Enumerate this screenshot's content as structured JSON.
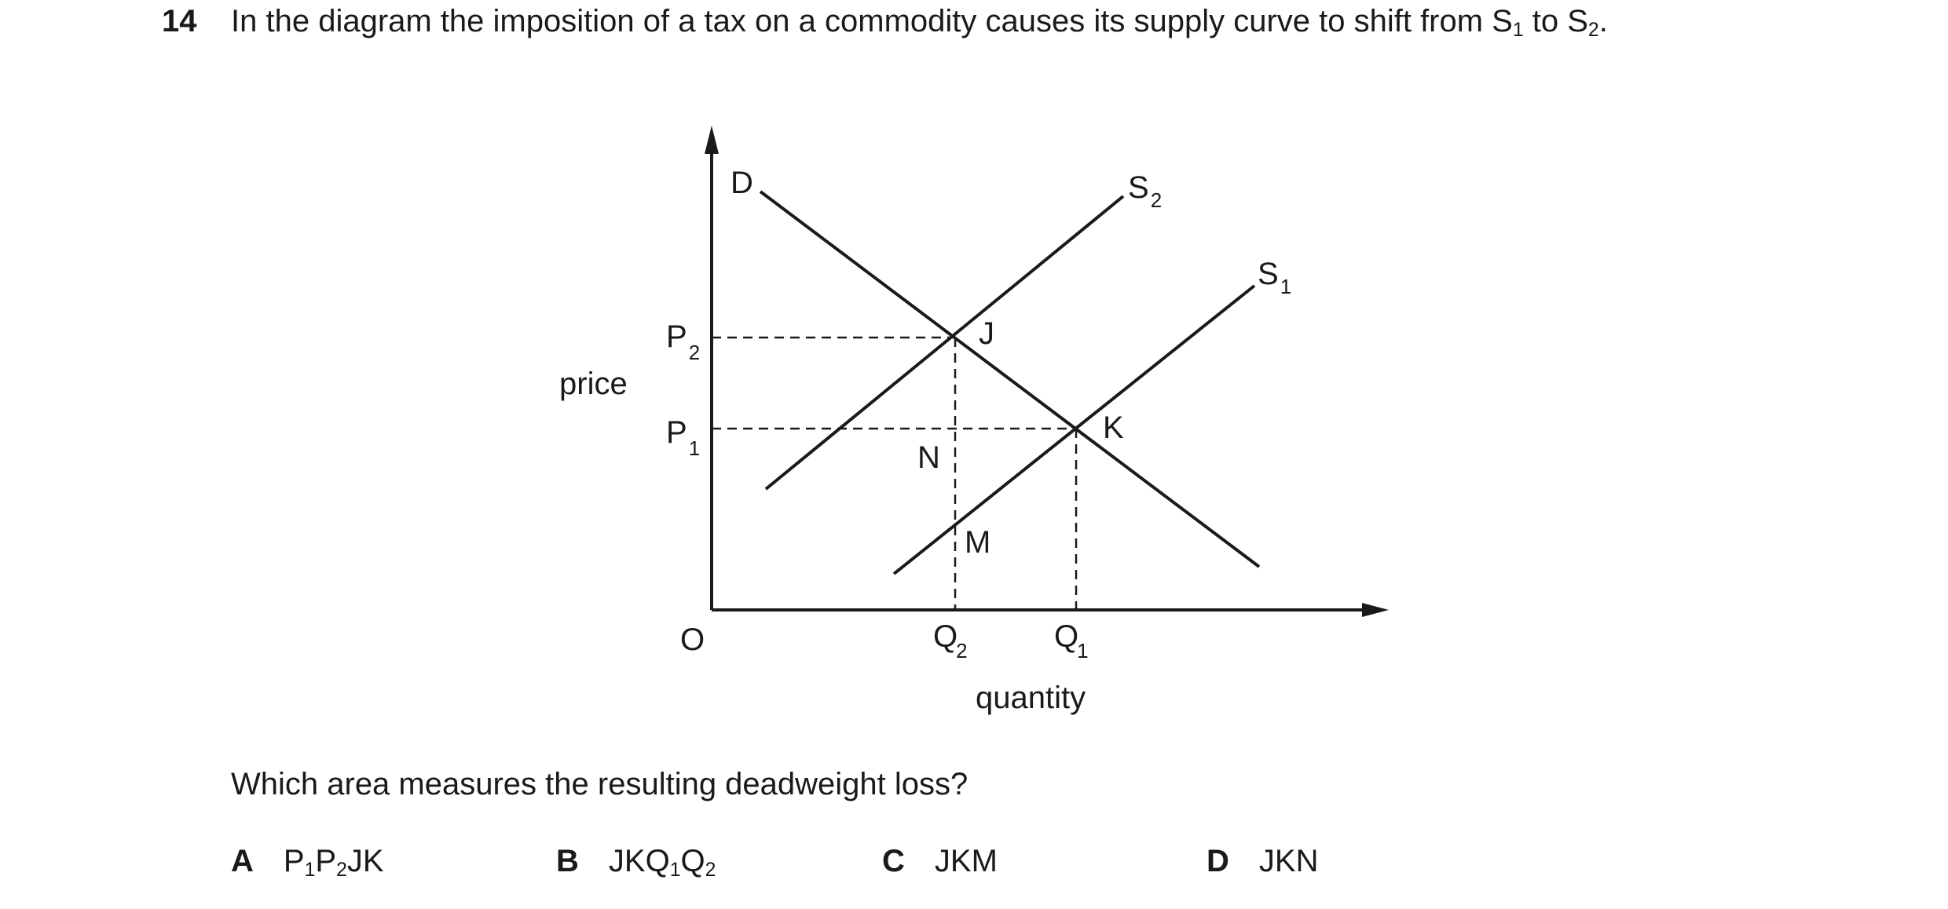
{
  "question_number": "14",
  "stem": {
    "before_s1": "In the diagram the imposition of a tax on a commodity causes its supply curve to shift from S",
    "s1_sub": "1",
    "between": " to S",
    "s2_sub": "2",
    "end": "."
  },
  "diagram": {
    "y_axis_label": "price",
    "x_axis_label": "quantity",
    "origin_label": "O",
    "demand_label": "D",
    "supply_labels": [
      {
        "main": "S",
        "sub": "2"
      },
      {
        "main": "S",
        "sub": "1"
      }
    ],
    "price_labels": [
      {
        "main": "P",
        "sub": "2"
      },
      {
        "main": "P",
        "sub": "1"
      }
    ],
    "quantity_labels": [
      {
        "main": "Q",
        "sub": "2"
      },
      {
        "main": "Q",
        "sub": "1"
      }
    ],
    "point_labels": {
      "J": "J",
      "K": "K",
      "N": "N",
      "M": "M"
    }
  },
  "question": "Which area measures the resulting deadweight loss?",
  "options": [
    {
      "letter": "A",
      "parts": [
        "P",
        "1",
        "P",
        "2",
        "JK"
      ]
    },
    {
      "letter": "B",
      "parts": [
        "JKQ",
        "1",
        "Q",
        "2"
      ]
    },
    {
      "letter": "C",
      "text": "JKM"
    },
    {
      "letter": "D",
      "text": "JKN"
    }
  ]
}
